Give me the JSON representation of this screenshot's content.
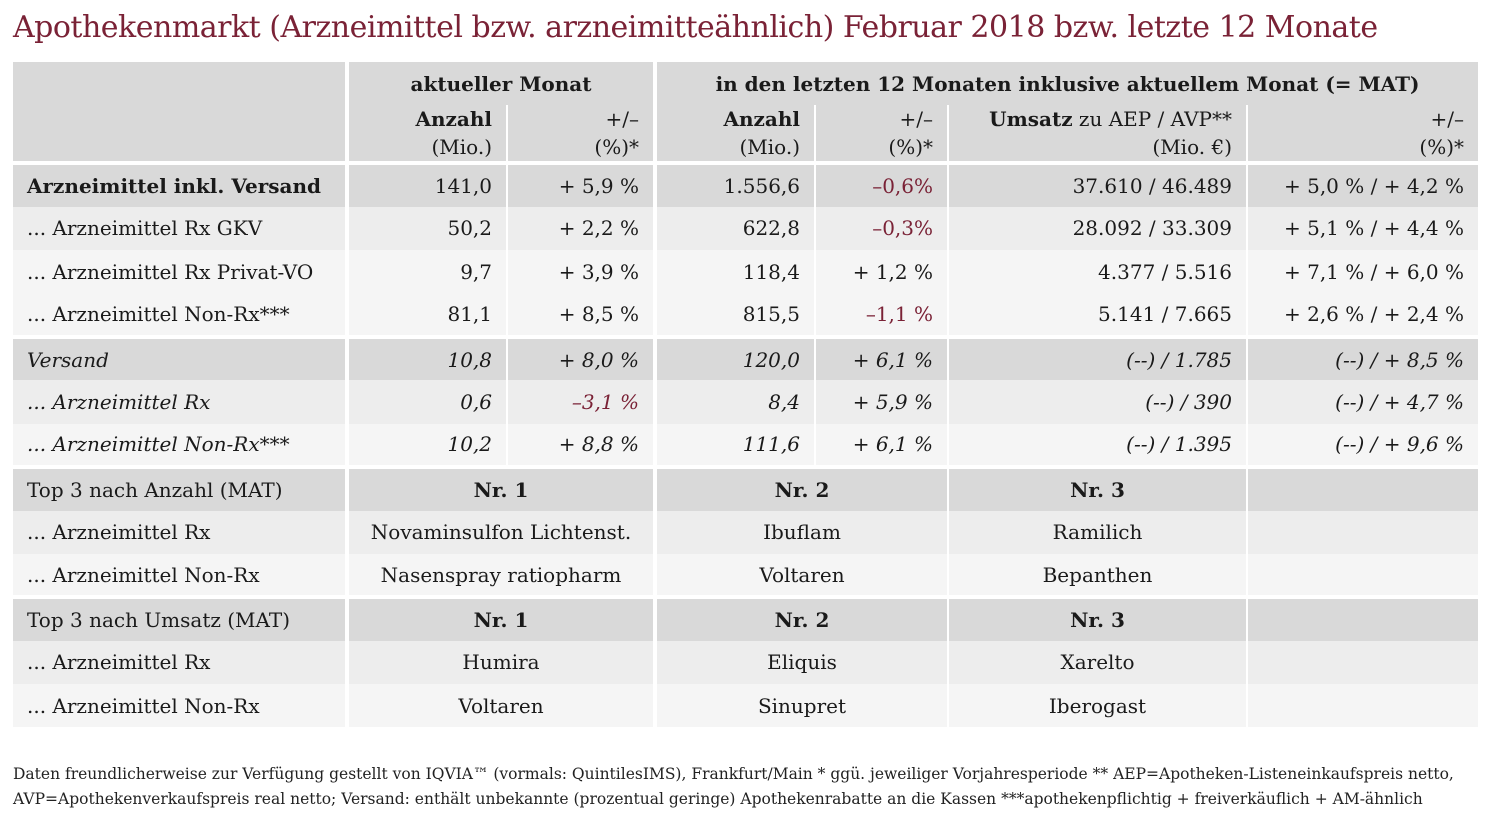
{
  "title": "Apothekenmarkt (Arzneimittel bzw. arzneimitteähnlich) Februar 2018 bzw. letzte 12 Monate",
  "header": {
    "group1": "aktueller Monat",
    "group2": "in den letzten 12 Monaten inklusive aktuellem Monat (= MAT)",
    "col_anzahl": "Anzahl",
    "col_anzahl_unit": "(Mio.)",
    "col_pm": "+/–",
    "col_pm_unit": "(%)*",
    "col_umsatz_bold": "Umsatz",
    "col_umsatz_rest": " zu AEP / AVP**",
    "col_umsatz_unit": "(Mio. €)"
  },
  "rows": [
    {
      "label": "Arzneimittel inkl. Versand",
      "a": "141,0",
      "ap": "+ 5,9 %",
      "m": "1.556,6",
      "mp": "–0,6%",
      "u": "37.610 / 46.489",
      "up": "+ 5,0 % / + 4,2 %"
    },
    {
      "label": "... Arzneimittel Rx GKV",
      "a": "50,2",
      "ap": "+ 2,2 %",
      "m": "622,8",
      "mp": "–0,3%",
      "u": "28.092 / 33.309",
      "up": "+ 5,1 % / + 4,4 %"
    },
    {
      "label": "... Arzneimittel Rx Privat-VO",
      "a": "9,7",
      "ap": "+ 3,9 %",
      "m": "118,4",
      "mp": "+ 1,2 %",
      "u": "4.377 / 5.516",
      "up": "+ 7,1 % / + 6,0 %"
    },
    {
      "label": "... Arzneimittel Non-Rx***",
      "a": "81,1",
      "ap": "+ 8,5 %",
      "m": "815,5",
      "mp": "–1,1 %",
      "u": "5.141 / 7.665",
      "up": "+ 2,6 % / + 2,4 %"
    },
    {
      "label": "Versand",
      "a": "10,8",
      "ap": "+ 8,0 %",
      "m": "120,0",
      "mp": "+ 6,1 %",
      "u": "(--) / 1.785",
      "up": "(--) / + 8,5 %"
    },
    {
      "label": "... Arzneimittel Rx",
      "a": "0,6",
      "ap": "–3,1 %",
      "m": "8,4",
      "mp": "+ 5,9 %",
      "u": "(--) / 390",
      "up": "(--) / + 4,7 %"
    },
    {
      "label": "... Arzneimittel Non-Rx***",
      "a": "10,2",
      "ap": "+ 8,8 %",
      "m": "111,6",
      "mp": "+ 6,1 %",
      "u": "(--) / 1.395",
      "up": "(--) / + 9,6 %"
    }
  ],
  "top_anzahl": {
    "title": "Top 3 nach Anzahl (MAT)",
    "nr1": "Nr. 1",
    "nr2": "Nr. 2",
    "nr3": "Nr. 3",
    "items": [
      {
        "label": "... Arzneimittel Rx",
        "p1": "Novaminsulfon Lichtenst.",
        "p2": "Ibuflam",
        "p3": "Ramilich"
      },
      {
        "label": "... Arzneimittel Non-Rx",
        "p1": "Nasenspray ratiopharm",
        "p2": "Voltaren",
        "p3": "Bepanthen"
      }
    ]
  },
  "top_umsatz": {
    "title": "Top 3 nach Umsatz (MAT)",
    "nr1": "Nr. 1",
    "nr2": "Nr. 2",
    "nr3": "Nr. 3",
    "items": [
      {
        "label": "... Arzneimittel Rx",
        "p1": "Humira",
        "p2": "Eliquis",
        "p3": "Xarelto"
      },
      {
        "label": "... Arzneimittel Non-Rx",
        "p1": "Voltaren",
        "p2": "Sinupret",
        "p3": "Iberogast"
      }
    ]
  },
  "footer": {
    "line1": "Daten freundlicherweise zur Verfügung gestellt von IQVIA™ (vormals: QuintilesIMS), Frankfurt/Main  * ggü. jeweiliger Vorjahresperiode  ** AEP=Apotheken-Listeneinkaufspreis netto,",
    "line2": "AVP=Apothekenverkaufspreis real netto; Versand: enthält unbekannte (prozentual geringe) Apothekenrabatte an die Kassen    ***apothekenpflichtig + freiverkäuflich + AM-ähnlich"
  },
  "colors": {
    "title": "#7a2236",
    "negative": "#7a2236",
    "header_bg": "#d9d9d9",
    "row_light": "#ededed",
    "row_white": "#f5f5f5"
  }
}
